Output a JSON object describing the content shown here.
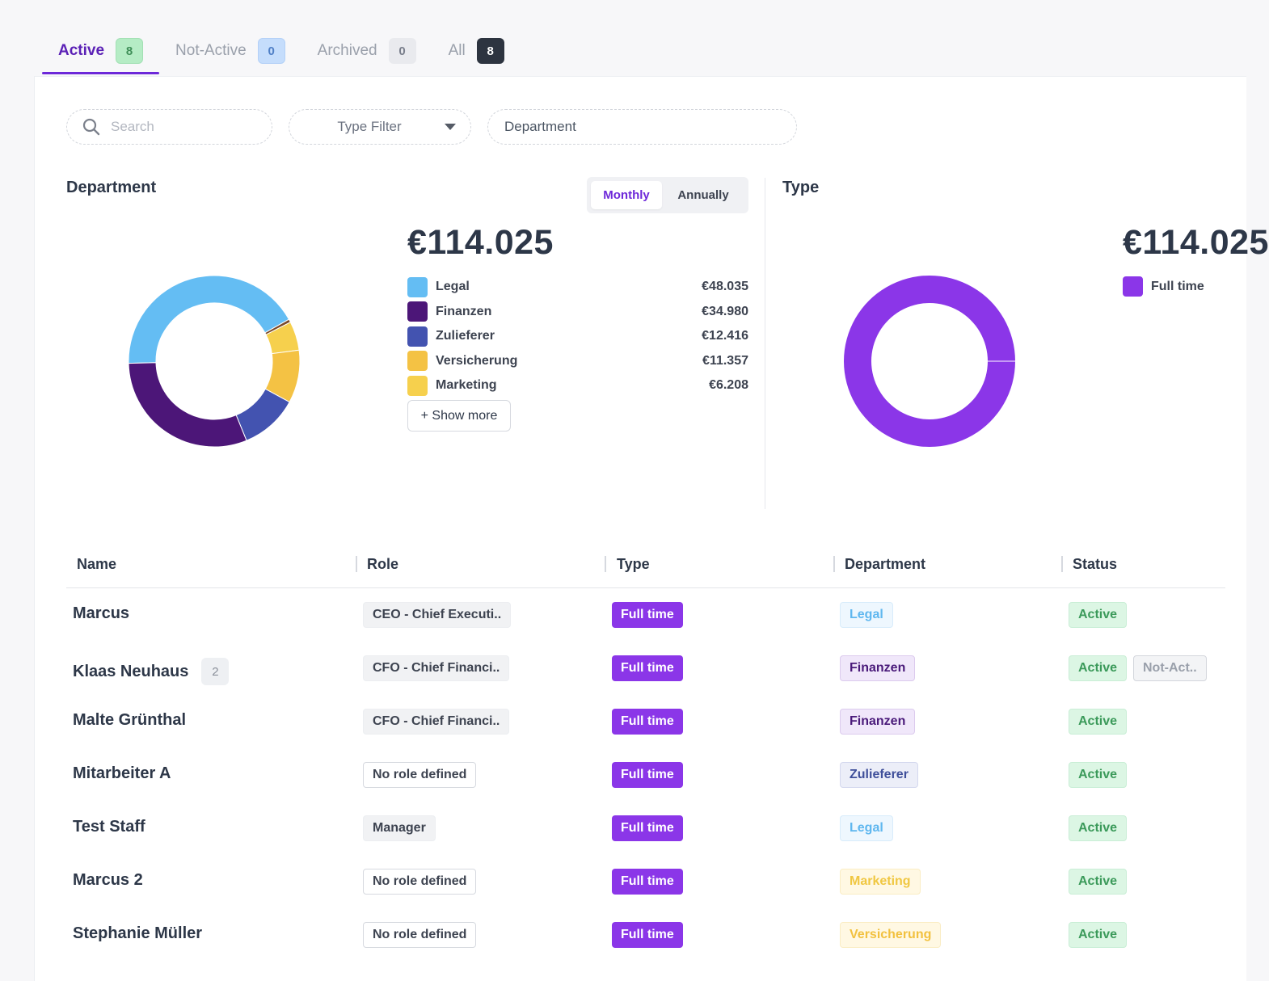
{
  "tabs": [
    {
      "label": "Active",
      "count": "8"
    },
    {
      "label": "Not-Active",
      "count": "0"
    },
    {
      "label": "Archived",
      "count": "0"
    },
    {
      "label": "All",
      "count": "8"
    }
  ],
  "filters": {
    "search_placeholder": "Search",
    "type_filter": "Type Filter",
    "department": "Department"
  },
  "department_panel": {
    "title": "Department",
    "toggle": {
      "monthly": "Monthly",
      "annually": "Annually",
      "selected": "Monthly"
    },
    "total": "€114.025",
    "show_more": "+ Show more"
  },
  "type_panel": {
    "title": "Type",
    "total": "€114.025"
  },
  "colors": {
    "legal": "#64bdf3",
    "finanzen": "#4c1678",
    "zulieferer": "#4353b0",
    "versicherung": "#f4c244",
    "marketing": "#f6d04d",
    "other": "#7a4a2a",
    "fulltime": "#8b36e8",
    "accent": "#6d28d9"
  },
  "chart_data": [
    {
      "type": "pie",
      "title": "Department",
      "donut": true,
      "categories": [
        "Legal",
        "Finanzen",
        "Zulieferer",
        "Versicherung",
        "Marketing"
      ],
      "values": [
        48035,
        34980,
        12416,
        11357,
        6208
      ],
      "value_labels": [
        "€48.035",
        "€34.980",
        "€12.416",
        "€11.357",
        "€6.208"
      ],
      "total": 114025
    },
    {
      "type": "pie",
      "title": "Type",
      "donut": true,
      "categories": [
        "Full time"
      ],
      "values": [
        114025
      ]
    }
  ],
  "table": {
    "headers": [
      "Name",
      "Role",
      "Type",
      "Department",
      "Status"
    ],
    "rows": [
      {
        "name": "Marcus",
        "count": "",
        "role": "CEO - Chief Executi..",
        "role_style": "grey",
        "type": "Full time",
        "department": "Legal",
        "dept_style": "legal",
        "status": "Active",
        "status2": ""
      },
      {
        "name": "Klaas Neuhaus",
        "count": "2",
        "role": "CFO - Chief Financi..",
        "role_style": "grey",
        "type": "Full time",
        "department": "Finanzen",
        "dept_style": "finanzen",
        "status": "Active",
        "status2": "Not-Act.."
      },
      {
        "name": "Malte Grünthal",
        "count": "",
        "role": "CFO - Chief Financi..",
        "role_style": "grey",
        "type": "Full time",
        "department": "Finanzen",
        "dept_style": "finanzen",
        "status": "Active",
        "status2": ""
      },
      {
        "name": "Mitarbeiter A",
        "count": "",
        "role": "No role defined",
        "role_style": "outline",
        "type": "Full time",
        "department": "Zulieferer",
        "dept_style": "zulieferer",
        "status": "Active",
        "status2": ""
      },
      {
        "name": "Test Staff",
        "count": "",
        "role": "Manager",
        "role_style": "grey",
        "type": "Full time",
        "department": "Legal",
        "dept_style": "legal",
        "status": "Active",
        "status2": ""
      },
      {
        "name": "Marcus 2",
        "count": "",
        "role": "No role defined",
        "role_style": "outline",
        "type": "Full time",
        "department": "Marketing",
        "dept_style": "marketing",
        "status": "Active",
        "status2": ""
      },
      {
        "name": "Stephanie Müller",
        "count": "",
        "role": "No role defined",
        "role_style": "outline",
        "type": "Full time",
        "department": "Versicherung",
        "dept_style": "versicherung",
        "status": "Active",
        "status2": ""
      }
    ]
  }
}
